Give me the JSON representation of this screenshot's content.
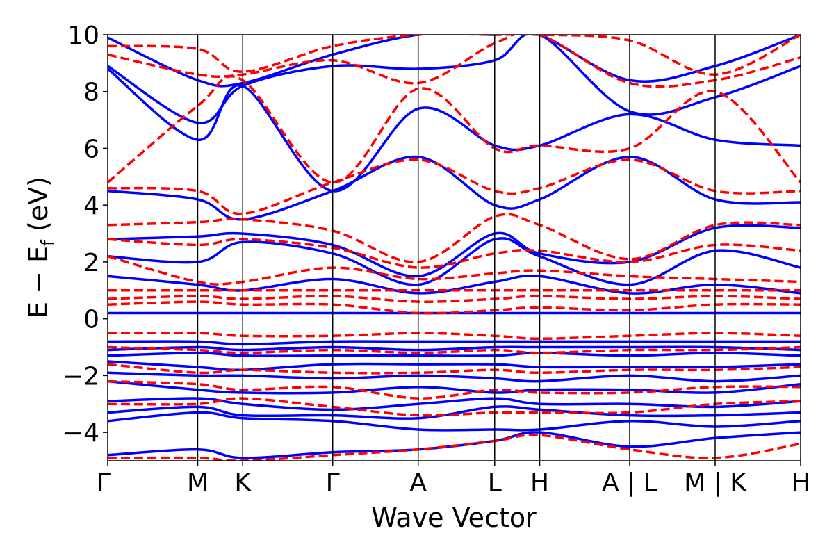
{
  "chart_data": {
    "type": "line",
    "xlabel": "Wave Vector",
    "ylabel": "E − E",
    "ylabel_sub": "f",
    "ylabel_unit": " (eV)",
    "ylim": [
      -5,
      10
    ],
    "yticks": [
      -4,
      -2,
      0,
      2,
      4,
      6,
      8,
      10
    ],
    "ytick_labels": [
      "−4",
      "−2",
      "0",
      "2",
      "4",
      "6",
      "8",
      "10"
    ],
    "grid": false,
    "kpath": [
      0,
      1,
      1.5,
      2.5,
      3.45,
      4.3,
      4.8,
      5.8,
      6.75,
      7.7
    ],
    "kpoint_labels": [
      "Γ",
      "M",
      "K",
      "Γ",
      "A",
      "L",
      "H",
      "A | L",
      "M | K",
      "H"
    ],
    "series_styles": [
      {
        "color": "#0000ff",
        "dash": "solid"
      },
      {
        "color": "#ff0000",
        "dash": "dashed"
      }
    ],
    "series": [
      {
        "style": 0,
        "y": [
          -4.8,
          -4.6,
          -4.9,
          -4.7,
          -4.6,
          -4.3,
          -4.0,
          -4.5,
          -4.2,
          -4.0
        ]
      },
      {
        "style": 0,
        "y": [
          -3.6,
          -3.3,
          -3.5,
          -3.6,
          -3.9,
          -3.9,
          -3.9,
          -3.6,
          -3.8,
          -3.6
        ]
      },
      {
        "style": 0,
        "y": [
          -3.3,
          -3.1,
          -3.4,
          -3.4,
          -3.5,
          -3.1,
          -3.2,
          -3.4,
          -3.4,
          -3.3
        ]
      },
      {
        "style": 0,
        "y": [
          -2.9,
          -2.8,
          -3.0,
          -3.2,
          -3.0,
          -2.8,
          -3.0,
          -3.0,
          -3.1,
          -2.9
        ]
      },
      {
        "style": 0,
        "y": [
          -2.2,
          -2.5,
          -2.6,
          -2.6,
          -2.4,
          -2.6,
          -2.5,
          -2.5,
          -2.6,
          -2.3
        ]
      },
      {
        "style": 0,
        "y": [
          -1.9,
          -2.0,
          -2.0,
          -2.1,
          -2.0,
          -2.1,
          -2.2,
          -2.0,
          -2.2,
          -2.0
        ]
      },
      {
        "style": 0,
        "y": [
          -1.5,
          -1.7,
          -1.8,
          -1.6,
          -1.6,
          -1.6,
          -1.7,
          -1.7,
          -1.7,
          -1.6
        ]
      },
      {
        "style": 0,
        "y": [
          -1.3,
          -1.2,
          -1.3,
          -1.3,
          -1.3,
          -1.3,
          -1.2,
          -1.3,
          -1.2,
          -1.3
        ]
      },
      {
        "style": 0,
        "y": [
          -1.1,
          -1.0,
          -1.1,
          -1.0,
          -1.1,
          -1.0,
          -1.0,
          -1.0,
          -1.0,
          -1.1
        ]
      },
      {
        "style": 0,
        "y": [
          -0.8,
          -0.8,
          -0.9,
          -0.8,
          -0.8,
          -0.8,
          -0.8,
          -0.8,
          -0.8,
          -0.8
        ]
      },
      {
        "style": 0,
        "y": [
          0.2,
          0.2,
          0.2,
          0.2,
          0.2,
          0.2,
          0.2,
          0.2,
          0.2,
          0.2
        ]
      },
      {
        "style": 0,
        "y": [
          1.5,
          1.2,
          1.0,
          1.4,
          0.9,
          1.3,
          1.5,
          0.9,
          1.2,
          0.9
        ]
      },
      {
        "style": 0,
        "y": [
          2.2,
          2.0,
          2.7,
          2.3,
          1.2,
          2.8,
          2.2,
          1.2,
          2.4,
          1.8
        ]
      },
      {
        "style": 0,
        "y": [
          2.8,
          2.9,
          3.0,
          2.6,
          1.5,
          3.0,
          2.3,
          2.0,
          3.2,
          3.2
        ]
      },
      {
        "style": 0,
        "y": [
          4.5,
          4.2,
          3.5,
          4.5,
          5.7,
          4.0,
          4.2,
          5.7,
          4.2,
          4.1
        ]
      },
      {
        "style": 0,
        "y": [
          8.8,
          6.3,
          8.2,
          4.5,
          7.4,
          6.1,
          6.1,
          7.2,
          6.3,
          6.1
        ]
      },
      {
        "style": 0,
        "y": [
          8.9,
          6.9,
          8.2,
          8.9,
          8.8,
          9.1,
          10.0,
          7.3,
          7.8,
          8.9
        ]
      },
      {
        "style": 0,
        "y": [
          9.9,
          8.4,
          8.3,
          9.3,
          10.0,
          10.0,
          10.0,
          8.4,
          8.9,
          10.0
        ]
      },
      {
        "style": 1,
        "y": [
          -4.9,
          -4.9,
          -5.0,
          -4.8,
          -4.6,
          -4.3,
          -4.1,
          -4.6,
          -4.9,
          -4.4
        ]
      },
      {
        "style": 1,
        "y": [
          -3.0,
          -3.0,
          -2.8,
          -3.1,
          -3.4,
          -3.3,
          -3.3,
          -3.3,
          -3.0,
          -2.9
        ]
      },
      {
        "style": 1,
        "y": [
          -2.2,
          -2.3,
          -2.5,
          -2.4,
          -2.8,
          -2.5,
          -2.6,
          -2.6,
          -2.4,
          -2.4
        ]
      },
      {
        "style": 1,
        "y": [
          -1.6,
          -1.9,
          -1.8,
          -1.9,
          -1.9,
          -1.8,
          -1.9,
          -1.8,
          -1.8,
          -1.7
        ]
      },
      {
        "style": 1,
        "y": [
          -1.0,
          -1.1,
          -1.2,
          -1.1,
          -1.2,
          -1.1,
          -1.2,
          -1.1,
          -1.1,
          -1.0
        ]
      },
      {
        "style": 1,
        "y": [
          -0.5,
          -0.5,
          -0.6,
          -0.6,
          -0.5,
          -0.6,
          -0.7,
          -0.6,
          -0.5,
          -0.6
        ]
      },
      {
        "style": 1,
        "y": [
          0.5,
          0.6,
          0.5,
          0.5,
          0.2,
          0.3,
          0.4,
          0.3,
          0.5,
          0.5
        ]
      },
      {
        "style": 1,
        "y": [
          0.7,
          0.8,
          0.7,
          0.8,
          0.6,
          0.7,
          0.8,
          0.7,
          0.8,
          0.7
        ]
      },
      {
        "style": 1,
        "y": [
          1.0,
          1.0,
          1.0,
          1.0,
          1.0,
          1.0,
          1.0,
          1.0,
          1.0,
          1.0
        ]
      },
      {
        "style": 1,
        "y": [
          2.2,
          1.3,
          1.3,
          1.8,
          1.4,
          1.6,
          1.7,
          1.5,
          1.4,
          1.3
        ]
      },
      {
        "style": 1,
        "y": [
          2.8,
          2.6,
          2.8,
          2.5,
          1.8,
          2.3,
          2.4,
          2.0,
          2.6,
          2.4
        ]
      },
      {
        "style": 1,
        "y": [
          3.3,
          3.4,
          3.5,
          3.1,
          2.0,
          3.6,
          3.3,
          2.1,
          3.3,
          3.3
        ]
      },
      {
        "style": 1,
        "y": [
          4.6,
          4.5,
          3.7,
          4.8,
          5.6,
          4.5,
          4.6,
          5.6,
          4.5,
          4.5
        ]
      },
      {
        "style": 1,
        "y": [
          4.8,
          7.5,
          8.4,
          4.8,
          8.1,
          6.0,
          6.1,
          6.0,
          8.0,
          4.8
        ]
      },
      {
        "style": 1,
        "y": [
          9.3,
          8.6,
          8.6,
          9.1,
          8.3,
          9.7,
          10.0,
          8.3,
          8.4,
          9.2
        ]
      },
      {
        "style": 1,
        "y": [
          9.6,
          9.5,
          8.7,
          9.6,
          10.0,
          10.0,
          10.0,
          9.8,
          8.6,
          10.0
        ]
      }
    ]
  }
}
